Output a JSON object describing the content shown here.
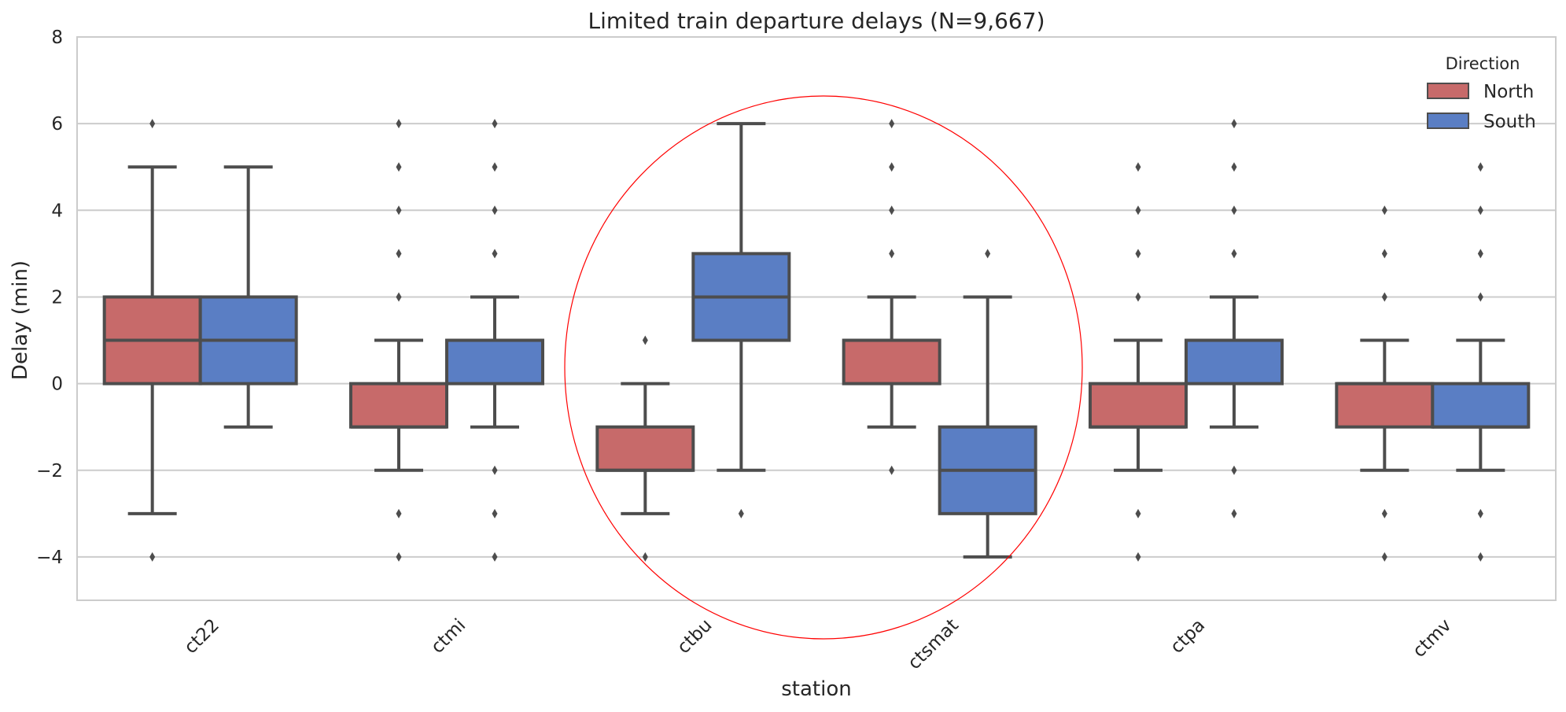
{
  "chart_data": {
    "type": "box",
    "title": "Limited train departure delays (N=9,667)",
    "xlabel": "station",
    "ylabel": "Delay (min)",
    "ylim": [
      -5,
      8
    ],
    "yticks": [
      -4,
      -2,
      0,
      2,
      4,
      6,
      8
    ],
    "ytick_labels": [
      "−4",
      "−2",
      "0",
      "2",
      "4",
      "6",
      "8"
    ],
    "grid": "horizontal",
    "legend": {
      "title": "Direction",
      "position": "top-right"
    },
    "categories": [
      "ct22",
      "ctmi",
      "ctbu",
      "ctsmat",
      "ctpa",
      "ctmv"
    ],
    "series": [
      {
        "name": "North",
        "color": "#c76a6a",
        "boxes": [
          {
            "q1": 0,
            "median": 1,
            "q3": 2,
            "whisker_low": -3,
            "whisker_high": 5,
            "outliers": [
              6,
              -4
            ]
          },
          {
            "q1": -1,
            "median": -1,
            "q3": 0,
            "whisker_low": -2,
            "whisker_high": 1,
            "outliers": [
              6,
              5,
              4,
              3,
              2,
              -3,
              -4
            ]
          },
          {
            "q1": -2,
            "median": -2,
            "q3": -1,
            "whisker_low": -3,
            "whisker_high": 0,
            "outliers": [
              1,
              -4
            ]
          },
          {
            "q1": 0,
            "median": 1,
            "q3": 1,
            "whisker_low": -1,
            "whisker_high": 2,
            "outliers": [
              6,
              5,
              4,
              3,
              -2
            ]
          },
          {
            "q1": -1,
            "median": -1,
            "q3": 0,
            "whisker_low": -2,
            "whisker_high": 1,
            "outliers": [
              5,
              4,
              3,
              2,
              -3,
              -4
            ]
          },
          {
            "q1": -1,
            "median": 0,
            "q3": 0,
            "whisker_low": -2,
            "whisker_high": 1,
            "outliers": [
              4,
              3,
              2,
              -3,
              -4
            ]
          }
        ]
      },
      {
        "name": "South",
        "color": "#5a7ec4",
        "boxes": [
          {
            "q1": 0,
            "median": 1,
            "q3": 2,
            "whisker_low": -1,
            "whisker_high": 5,
            "outliers": []
          },
          {
            "q1": 0,
            "median": 1,
            "q3": 1,
            "whisker_low": -1,
            "whisker_high": 2,
            "outliers": [
              6,
              5,
              4,
              3,
              -2,
              -3,
              -4
            ]
          },
          {
            "q1": 1,
            "median": 2,
            "q3": 3,
            "whisker_low": -2,
            "whisker_high": 6,
            "outliers": [
              -3
            ]
          },
          {
            "q1": -3,
            "median": -2,
            "q3": -1,
            "whisker_low": -4,
            "whisker_high": 2,
            "outliers": [
              3
            ]
          },
          {
            "q1": 0,
            "median": 1,
            "q3": 1,
            "whisker_low": -1,
            "whisker_high": 2,
            "outliers": [
              6,
              5,
              4,
              3,
              -2,
              -3
            ]
          },
          {
            "q1": -1,
            "median": -1,
            "q3": 0,
            "whisker_low": -2,
            "whisker_high": 1,
            "outliers": [
              5,
              4,
              3,
              2,
              -3,
              -4
            ]
          }
        ]
      }
    ],
    "annotations": [
      {
        "type": "ellipse",
        "color": "#ff0000",
        "encloses_categories": [
          "ctbu",
          "ctsmat"
        ]
      }
    ]
  }
}
